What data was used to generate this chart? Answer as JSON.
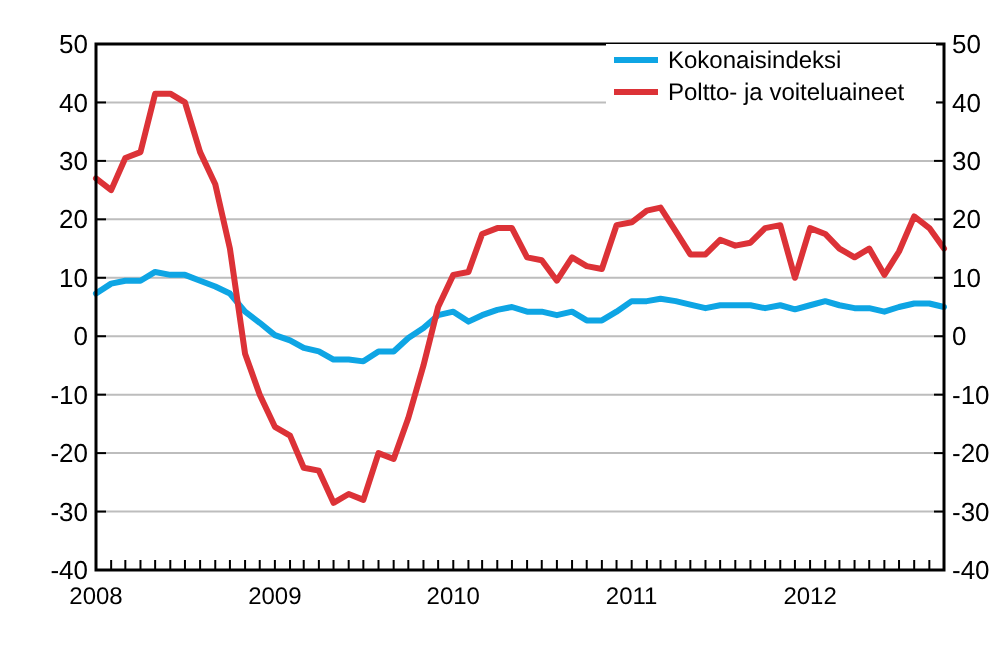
{
  "chart_data": {
    "type": "line",
    "x": [
      "2008-01",
      "2008-02",
      "2008-03",
      "2008-04",
      "2008-05",
      "2008-06",
      "2008-07",
      "2008-08",
      "2008-09",
      "2008-10",
      "2008-11",
      "2008-12",
      "2009-01",
      "2009-02",
      "2009-03",
      "2009-04",
      "2009-05",
      "2009-06",
      "2009-07",
      "2009-08",
      "2009-09",
      "2009-10",
      "2009-11",
      "2009-12",
      "2010-01",
      "2010-02",
      "2010-03",
      "2010-04",
      "2010-05",
      "2010-06",
      "2010-07",
      "2010-08",
      "2010-09",
      "2010-10",
      "2010-11",
      "2010-12",
      "2011-01",
      "2011-02",
      "2011-03",
      "2011-04",
      "2011-05",
      "2011-06",
      "2011-07",
      "2011-08",
      "2011-09",
      "2011-10",
      "2011-11",
      "2011-12",
      "2012-01",
      "2012-02",
      "2012-03",
      "2012-04",
      "2012-05",
      "2012-06",
      "2012-07",
      "2012-08",
      "2012-09",
      "2012-10"
    ],
    "series": [
      {
        "name": "Kokonaisindeksi",
        "color": "#0ea5e4",
        "values": [
          7.3,
          9,
          9.5,
          9.5,
          11,
          10.5,
          10.5,
          9.5,
          8.5,
          7.3,
          4.2,
          2.3,
          0.2,
          -0.7,
          -2,
          -2.6,
          -4,
          -4,
          -4.3,
          -2.6,
          -2.6,
          -0.3,
          1.4,
          3.6,
          4.2,
          2.5,
          3.6,
          4.5,
          5,
          4.2,
          4.2,
          3.6,
          4.2,
          2.7,
          2.7,
          4.2,
          6,
          6,
          6.4,
          6,
          5.4,
          4.8,
          5.3,
          5.3,
          5.3,
          4.8,
          5.3,
          4.6,
          5.3,
          6,
          5.3,
          4.8,
          4.8,
          4.2,
          5,
          5.6,
          5.6,
          5
        ]
      },
      {
        "name": "Poltto- ja voiteluaineet",
        "color": "#dc3237",
        "values": [
          27,
          25,
          30.5,
          31.5,
          41.5,
          41.5,
          40,
          31.5,
          26,
          15,
          -3,
          -10,
          -15.5,
          -17,
          -22.5,
          -23,
          -28.5,
          -27,
          -28,
          -20,
          -21,
          -14,
          -5,
          5,
          10.5,
          11,
          17.5,
          18.5,
          18.5,
          13.5,
          13,
          9.5,
          13.5,
          12,
          11.5,
          19,
          19.5,
          21.5,
          22,
          18,
          14,
          14,
          16.5,
          15.5,
          16,
          18.5,
          19,
          10,
          18.5,
          17.5,
          15,
          13.5,
          15,
          10.5,
          14.5,
          20.5,
          18.5,
          15
        ]
      }
    ],
    "xlim": [
      "2008-01",
      "2012-10"
    ],
    "xticks": [
      {
        "value": "2008-01",
        "label": "2008"
      },
      {
        "value": "2008-02",
        "label": null
      },
      {
        "value": "2008-03",
        "label": null
      },
      {
        "value": "2008-04",
        "label": null
      },
      {
        "value": "2008-05",
        "label": null
      },
      {
        "value": "2008-06",
        "label": null
      },
      {
        "value": "2008-07",
        "label": null
      },
      {
        "value": "2008-08",
        "label": null
      },
      {
        "value": "2008-09",
        "label": null
      },
      {
        "value": "2008-10",
        "label": null
      },
      {
        "value": "2008-11",
        "label": null
      },
      {
        "value": "2008-12",
        "label": null
      },
      {
        "value": "2009-01",
        "label": "2009"
      },
      {
        "value": "2009-02",
        "label": null
      },
      {
        "value": "2009-03",
        "label": null
      },
      {
        "value": "2009-04",
        "label": null
      },
      {
        "value": "2009-05",
        "label": null
      },
      {
        "value": "2009-06",
        "label": null
      },
      {
        "value": "2009-07",
        "label": null
      },
      {
        "value": "2009-08",
        "label": null
      },
      {
        "value": "2009-09",
        "label": null
      },
      {
        "value": "2009-10",
        "label": null
      },
      {
        "value": "2009-11",
        "label": null
      },
      {
        "value": "2009-12",
        "label": null
      },
      {
        "value": "2010-01",
        "label": "2010"
      },
      {
        "value": "2010-02",
        "label": null
      },
      {
        "value": "2010-03",
        "label": null
      },
      {
        "value": "2010-04",
        "label": null
      },
      {
        "value": "2010-05",
        "label": null
      },
      {
        "value": "2010-06",
        "label": null
      },
      {
        "value": "2010-07",
        "label": null
      },
      {
        "value": "2010-08",
        "label": null
      },
      {
        "value": "2010-09",
        "label": null
      },
      {
        "value": "2010-10",
        "label": null
      },
      {
        "value": "2010-11",
        "label": null
      },
      {
        "value": "2010-12",
        "label": null
      },
      {
        "value": "2011-01",
        "label": "2011"
      },
      {
        "value": "2011-02",
        "label": null
      },
      {
        "value": "2011-03",
        "label": null
      },
      {
        "value": "2011-04",
        "label": null
      },
      {
        "value": "2011-05",
        "label": null
      },
      {
        "value": "2011-06",
        "label": null
      },
      {
        "value": "2011-07",
        "label": null
      },
      {
        "value": "2011-08",
        "label": null
      },
      {
        "value": "2011-09",
        "label": null
      },
      {
        "value": "2011-10",
        "label": null
      },
      {
        "value": "2011-11",
        "label": null
      },
      {
        "value": "2011-12",
        "label": null
      },
      {
        "value": "2012-01",
        "label": "2012"
      },
      {
        "value": "2012-02",
        "label": null
      },
      {
        "value": "2012-03",
        "label": null
      },
      {
        "value": "2012-04",
        "label": null
      },
      {
        "value": "2012-05",
        "label": null
      },
      {
        "value": "2012-06",
        "label": null
      },
      {
        "value": "2012-07",
        "label": null
      },
      {
        "value": "2012-08",
        "label": null
      },
      {
        "value": "2012-09",
        "label": null
      },
      {
        "value": "2012-10",
        "label": null
      }
    ],
    "ylim": [
      -40,
      50
    ],
    "yticks": [
      -40,
      -30,
      -20,
      -10,
      0,
      10,
      20,
      30,
      40,
      50
    ],
    "y2lim": [
      -40,
      50
    ],
    "y2ticks": [
      -40,
      -30,
      -20,
      -10,
      0,
      10,
      20,
      30,
      40,
      50
    ],
    "grid": "y",
    "legend": "top right",
    "marker": "none",
    "line_style": "solid"
  }
}
